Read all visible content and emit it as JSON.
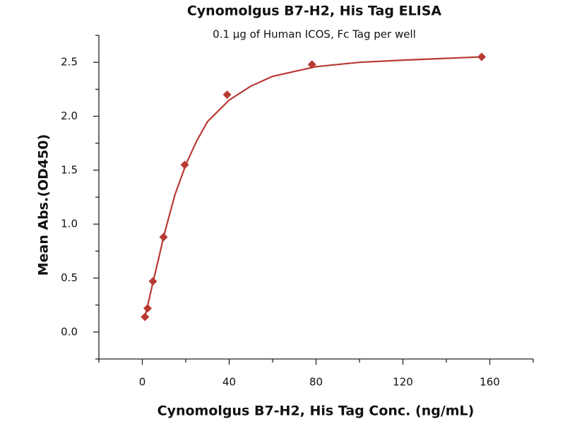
{
  "chart_data": {
    "type": "scatter",
    "title": "Cynomolgus B7-H2, His Tag ELISA",
    "subtitle": "0.1 μg of Human ICOS, Fc Tag per well",
    "x_label": "Cynomolgus B7-H2, His Tag Conc. (ng/mL)",
    "y_label": "Mean Abs.(OD450)",
    "x": [
      1.22,
      2.44,
      4.88,
      9.77,
      19.53,
      39.06,
      78.13,
      156.25
    ],
    "values": [
      0.14,
      0.22,
      0.47,
      0.88,
      1.55,
      2.2,
      2.48,
      2.55
    ],
    "color": "#b83a32",
    "fit": {
      "x": [
        1,
        2.5,
        5,
        7.5,
        10,
        15,
        20,
        25,
        30,
        40,
        50,
        60,
        80,
        100,
        120,
        156
      ],
      "values": [
        0.12,
        0.25,
        0.47,
        0.68,
        0.9,
        1.27,
        1.55,
        1.77,
        1.95,
        2.15,
        2.28,
        2.37,
        2.46,
        2.5,
        2.52,
        2.55
      ]
    },
    "xlim": [
      -20,
      180
    ],
    "ylim": [
      -0.25,
      2.75
    ],
    "xticks": [
      0,
      40,
      80,
      120,
      160
    ],
    "x_minor_ticks": [
      -20,
      20,
      60,
      100,
      140,
      180
    ],
    "yticks": [
      {
        "value": 0,
        "label": "0.0"
      },
      0.5,
      {
        "value": 1,
        "label": "1.0"
      },
      1.5,
      {
        "value": 2,
        "label": "2.0"
      },
      2.5
    ],
    "y_minor_ticks": [
      -0.25,
      0.25,
      0.75,
      1.25,
      1.75,
      2.25,
      2.75
    ],
    "grid": false
  }
}
